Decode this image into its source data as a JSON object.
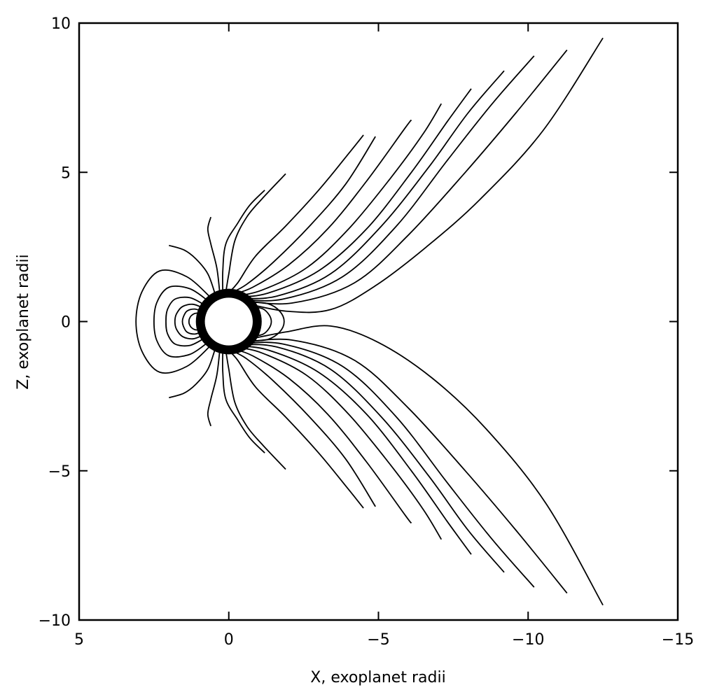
{
  "chart_data": {
    "type": "line",
    "xlabel": "X, exoplanet radii",
    "ylabel": "Z, exoplanet radii",
    "xlim": [
      5,
      -15
    ],
    "ylim": [
      -10,
      10
    ],
    "x_ticks": [
      5,
      0,
      -5,
      -10,
      -15
    ],
    "y_ticks": [
      -10,
      -5,
      0,
      5,
      10
    ],
    "x_tick_labels": [
      "5",
      "0",
      "−5",
      "−10",
      "−15"
    ],
    "y_tick_labels": [
      "−10",
      "−5",
      "0",
      "5",
      "10"
    ],
    "grid": false,
    "line_color": "#000000",
    "planet": {
      "center": [
        0,
        0
      ],
      "inner_radius": 0.8,
      "outer_radius": 1.1,
      "fill": "#ffffff",
      "ring": "#000000"
    },
    "series": [
      {
        "points": [
          [
            0.02,
            0.95
          ],
          [
            -0.3,
            1.3
          ],
          [
            -0.9,
            2.2
          ],
          [
            -1.9,
            3.2
          ],
          [
            -3.0,
            4.4
          ],
          [
            -3.9,
            5.5
          ],
          [
            -4.5,
            6.25
          ]
        ]
      },
      {
        "points": [
          [
            -0.05,
            0.95
          ],
          [
            -0.6,
            1.25
          ],
          [
            -1.5,
            2.0
          ],
          [
            -2.7,
            3.2
          ],
          [
            -3.9,
            4.6
          ],
          [
            -4.9,
            6.2
          ]
        ]
      },
      {
        "points": [
          [
            -0.1,
            0.9
          ],
          [
            -0.8,
            1.15
          ],
          [
            -2.0,
            1.9
          ],
          [
            -3.3,
            3.1
          ],
          [
            -4.6,
            4.7
          ],
          [
            -5.9,
            6.5
          ],
          [
            -6.1,
            6.75
          ]
        ]
      },
      {
        "points": [
          [
            -0.15,
            0.85
          ],
          [
            -1.1,
            1.05
          ],
          [
            -2.6,
            1.8
          ],
          [
            -4.0,
            3.1
          ],
          [
            -5.4,
            4.8
          ],
          [
            -6.5,
            6.3
          ],
          [
            -7.1,
            7.3
          ]
        ]
      },
      {
        "points": [
          [
            -0.2,
            0.82
          ],
          [
            -1.3,
            0.95
          ],
          [
            -3.0,
            1.7
          ],
          [
            -4.6,
            3.1
          ],
          [
            -6.1,
            5.0
          ],
          [
            -7.3,
            6.7
          ],
          [
            -8.1,
            7.8
          ]
        ]
      },
      {
        "points": [
          [
            -0.25,
            0.78
          ],
          [
            -1.6,
            0.85
          ],
          [
            -3.4,
            1.6
          ],
          [
            -5.1,
            3.2
          ],
          [
            -6.7,
            5.2
          ],
          [
            -8.0,
            7.0
          ],
          [
            -9.2,
            8.4
          ]
        ]
      },
      {
        "points": [
          [
            -0.3,
            0.75
          ],
          [
            -1.8,
            0.75
          ],
          [
            -3.8,
            1.5
          ],
          [
            -5.6,
            3.2
          ],
          [
            -7.3,
            5.4
          ],
          [
            -8.8,
            7.3
          ],
          [
            -10.2,
            8.9
          ]
        ]
      },
      {
        "points": [
          [
            -0.35,
            0.72
          ],
          [
            -2.1,
            0.62
          ],
          [
            -4.2,
            1.3
          ],
          [
            -6.0,
            2.9
          ],
          [
            -7.9,
            5.0
          ],
          [
            -9.6,
            7.0
          ],
          [
            -11.3,
            9.1
          ]
        ]
      },
      {
        "points": [
          [
            -0.4,
            0.65
          ],
          [
            -1.9,
            0.35
          ],
          [
            -3.4,
            0.4
          ],
          [
            -4.9,
            1.2
          ],
          [
            -6.6,
            2.5
          ],
          [
            -8.4,
            4.1
          ],
          [
            -10.5,
            6.4
          ],
          [
            -12.5,
            9.5
          ]
        ]
      },
      {
        "points": [
          [
            -0.4,
            -0.65
          ],
          [
            -1.9,
            -0.35
          ],
          [
            -3.4,
            -0.15
          ],
          [
            -5.0,
            -0.7
          ],
          [
            -6.8,
            -1.9
          ],
          [
            -8.6,
            -3.6
          ],
          [
            -10.6,
            -6.1
          ],
          [
            -12.5,
            -9.5
          ]
        ]
      },
      {
        "points": [
          [
            -0.35,
            -0.72
          ],
          [
            -2.1,
            -0.62
          ],
          [
            -4.2,
            -1.3
          ],
          [
            -6.0,
            -2.9
          ],
          [
            -7.9,
            -5.0
          ],
          [
            -9.6,
            -7.0
          ],
          [
            -11.3,
            -9.1
          ]
        ]
      },
      {
        "points": [
          [
            -0.3,
            -0.75
          ],
          [
            -1.8,
            -0.75
          ],
          [
            -3.8,
            -1.5
          ],
          [
            -5.6,
            -3.2
          ],
          [
            -7.3,
            -5.4
          ],
          [
            -8.8,
            -7.3
          ],
          [
            -10.2,
            -8.9
          ]
        ]
      },
      {
        "points": [
          [
            -0.25,
            -0.78
          ],
          [
            -1.6,
            -0.85
          ],
          [
            -3.4,
            -1.6
          ],
          [
            -5.1,
            -3.2
          ],
          [
            -6.7,
            -5.2
          ],
          [
            -8.0,
            -7.0
          ],
          [
            -9.2,
            -8.4
          ]
        ]
      },
      {
        "points": [
          [
            -0.2,
            -0.82
          ],
          [
            -1.3,
            -0.95
          ],
          [
            -3.0,
            -1.7
          ],
          [
            -4.6,
            -3.1
          ],
          [
            -6.1,
            -5.0
          ],
          [
            -7.3,
            -6.7
          ],
          [
            -8.1,
            -7.8
          ]
        ]
      },
      {
        "points": [
          [
            -0.15,
            -0.85
          ],
          [
            -1.1,
            -1.05
          ],
          [
            -2.6,
            -1.8
          ],
          [
            -4.0,
            -3.1
          ],
          [
            -5.4,
            -4.8
          ],
          [
            -6.5,
            -6.3
          ],
          [
            -7.1,
            -7.3
          ]
        ]
      },
      {
        "points": [
          [
            -0.1,
            -0.9
          ],
          [
            -0.8,
            -1.15
          ],
          [
            -2.0,
            -1.9
          ],
          [
            -3.3,
            -3.1
          ],
          [
            -4.6,
            -4.7
          ],
          [
            -5.9,
            -6.5
          ],
          [
            -6.1,
            -6.75
          ]
        ]
      },
      {
        "points": [
          [
            -0.05,
            -0.95
          ],
          [
            -0.6,
            -1.25
          ],
          [
            -1.5,
            -2.0
          ],
          [
            -2.7,
            -3.2
          ],
          [
            -3.9,
            -4.6
          ],
          [
            -4.9,
            -6.2
          ]
        ]
      },
      {
        "points": [
          [
            0.02,
            -0.95
          ],
          [
            -0.3,
            -1.3
          ],
          [
            -0.9,
            -2.2
          ],
          [
            -1.9,
            -3.2
          ],
          [
            -3.0,
            -4.4
          ],
          [
            -3.9,
            -5.5
          ],
          [
            -4.5,
            -6.25
          ]
        ]
      },
      {
        "points": [
          [
            0.1,
            0.98
          ],
          [
            0.0,
            1.6
          ],
          [
            -0.2,
            2.7
          ],
          [
            -0.6,
            3.5
          ],
          [
            -1.1,
            4.1
          ],
          [
            -1.9,
            4.95
          ]
        ]
      },
      {
        "points": [
          [
            0.2,
            0.97
          ],
          [
            0.2,
            1.7
          ],
          [
            0.1,
            2.6
          ],
          [
            -0.3,
            3.3
          ],
          [
            -0.7,
            3.9
          ],
          [
            -1.2,
            4.4
          ]
        ]
      },
      {
        "points": [
          [
            0.3,
            0.95
          ],
          [
            0.4,
            1.8
          ],
          [
            0.6,
            2.6
          ],
          [
            0.7,
            3.1
          ],
          [
            0.6,
            3.5
          ]
        ]
      },
      {
        "points": [
          [
            0.45,
            0.9
          ],
          [
            0.7,
            1.6
          ],
          [
            1.1,
            2.1
          ],
          [
            1.5,
            2.4
          ],
          [
            2.0,
            2.55
          ]
        ]
      },
      {
        "points": [
          [
            0.1,
            -0.98
          ],
          [
            0.0,
            -1.6
          ],
          [
            -0.2,
            -2.7
          ],
          [
            -0.6,
            -3.5
          ],
          [
            -1.1,
            -4.1
          ],
          [
            -1.9,
            -4.95
          ]
        ]
      },
      {
        "points": [
          [
            0.2,
            -0.97
          ],
          [
            0.2,
            -1.7
          ],
          [
            0.1,
            -2.6
          ],
          [
            -0.3,
            -3.3
          ],
          [
            -0.7,
            -3.9
          ],
          [
            -1.2,
            -4.4
          ]
        ]
      },
      {
        "points": [
          [
            0.3,
            -0.95
          ],
          [
            0.4,
            -1.8
          ],
          [
            0.6,
            -2.6
          ],
          [
            0.7,
            -3.1
          ],
          [
            0.6,
            -3.5
          ]
        ]
      },
      {
        "points": [
          [
            0.45,
            -0.9
          ],
          [
            0.7,
            -1.6
          ],
          [
            1.1,
            -2.1
          ],
          [
            1.5,
            -2.4
          ],
          [
            2.0,
            -2.55
          ]
        ]
      }
    ],
    "closed_loops": [
      {
        "points": [
          [
            0.6,
            0.8
          ],
          [
            1.4,
            1.5
          ],
          [
            2.3,
            1.7
          ],
          [
            2.9,
            1.0
          ],
          [
            3.1,
            0.0
          ],
          [
            2.9,
            -1.0
          ],
          [
            2.3,
            -1.7
          ],
          [
            1.4,
            -1.5
          ],
          [
            0.6,
            -0.8
          ]
        ]
      },
      {
        "points": [
          [
            0.7,
            0.7
          ],
          [
            1.3,
            1.1
          ],
          [
            2.0,
            1.15
          ],
          [
            2.4,
            0.65
          ],
          [
            2.5,
            0.0
          ],
          [
            2.4,
            -0.65
          ],
          [
            2.0,
            -1.15
          ],
          [
            1.3,
            -1.1
          ],
          [
            0.7,
            -0.7
          ]
        ]
      },
      {
        "points": [
          [
            0.8,
            0.55
          ],
          [
            1.3,
            0.8
          ],
          [
            1.8,
            0.75
          ],
          [
            2.05,
            0.4
          ],
          [
            2.1,
            0.0
          ],
          [
            2.05,
            -0.4
          ],
          [
            1.8,
            -0.75
          ],
          [
            1.3,
            -0.8
          ],
          [
            0.8,
            -0.55
          ]
        ]
      },
      {
        "points": [
          [
            0.85,
            0.45
          ],
          [
            1.2,
            0.58
          ],
          [
            1.55,
            0.5
          ],
          [
            1.75,
            0.25
          ],
          [
            1.8,
            0.0
          ],
          [
            1.75,
            -0.25
          ],
          [
            1.55,
            -0.5
          ],
          [
            1.2,
            -0.58
          ],
          [
            0.85,
            -0.45
          ]
        ]
      },
      {
        "points": [
          [
            0.9,
            0.35
          ],
          [
            1.15,
            0.42
          ],
          [
            1.4,
            0.35
          ],
          [
            1.52,
            0.15
          ],
          [
            1.55,
            0.0
          ],
          [
            1.52,
            -0.15
          ],
          [
            1.4,
            -0.35
          ],
          [
            1.15,
            -0.42
          ],
          [
            0.9,
            -0.35
          ]
        ]
      },
      {
        "points": [
          [
            0.95,
            0.25
          ],
          [
            1.1,
            0.28
          ],
          [
            1.25,
            0.2
          ],
          [
            1.32,
            0.08
          ],
          [
            1.33,
            0.0
          ],
          [
            1.32,
            -0.08
          ],
          [
            1.25,
            -0.2
          ],
          [
            1.1,
            -0.28
          ],
          [
            0.95,
            -0.25
          ]
        ]
      },
      {
        "points": [
          [
            -0.7,
            0.65
          ],
          [
            -1.3,
            0.6
          ],
          [
            -1.7,
            0.35
          ],
          [
            -1.85,
            0.0
          ],
          [
            -1.7,
            -0.35
          ],
          [
            -1.3,
            -0.6
          ],
          [
            -0.7,
            -0.65
          ]
        ]
      },
      {
        "points": [
          [
            -0.8,
            0.5
          ],
          [
            -1.15,
            0.42
          ],
          [
            -1.35,
            0.22
          ],
          [
            -1.42,
            0.0
          ],
          [
            -1.35,
            -0.22
          ],
          [
            -1.15,
            -0.42
          ],
          [
            -0.8,
            -0.5
          ]
        ]
      }
    ]
  }
}
